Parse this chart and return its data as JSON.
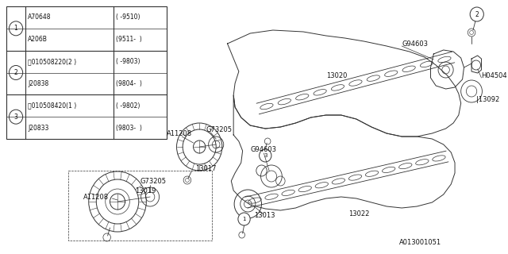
{
  "bg_color": "#ffffff",
  "line_color": "#333333",
  "text_color": "#111111",
  "diagram_code": "A013001051",
  "table_rows": [
    [
      "1",
      "A70648",
      "(",
      "-9510)"
    ],
    [
      "1",
      "A206B",
      "(9511-",
      ")"
    ],
    [
      "2",
      "B 010508220(2 )",
      "(",
      "-9803)"
    ],
    [
      "2",
      "J20838",
      "(9804-",
      ")"
    ],
    [
      "3",
      "B 010508420(1 )",
      "(",
      "-9802)"
    ],
    [
      "3",
      "J20833",
      "(9803-",
      ")"
    ]
  ]
}
